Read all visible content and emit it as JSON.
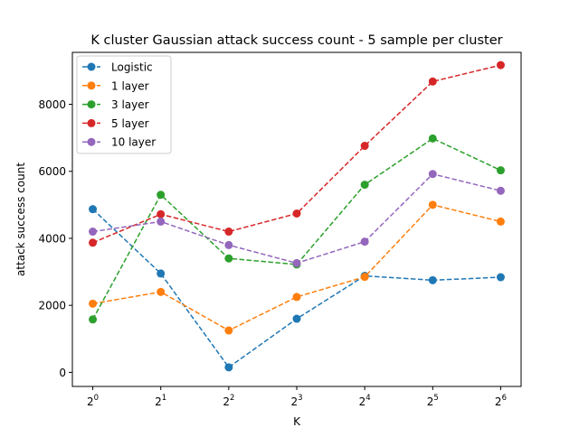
{
  "chart_data": {
    "type": "line",
    "title": "K cluster Gaussian attack success count - 5 sample per cluster",
    "xlabel": "K",
    "ylabel": "attack success count",
    "x": [
      0,
      1,
      2,
      3,
      4,
      5,
      6
    ],
    "x_tick_labels": [
      {
        "base": "2",
        "exp": "0"
      },
      {
        "base": "2",
        "exp": "1"
      },
      {
        "base": "2",
        "exp": "2"
      },
      {
        "base": "2",
        "exp": "3"
      },
      {
        "base": "2",
        "exp": "4"
      },
      {
        "base": "2",
        "exp": "5"
      },
      {
        "base": "2",
        "exp": "6"
      }
    ],
    "y_ticks": [
      0,
      2000,
      4000,
      6000,
      8000
    ],
    "y_tick_labels": [
      "0",
      "2000",
      "4000",
      "6000",
      "8000"
    ],
    "ylim": [
      -420,
      9550
    ],
    "xlim": [
      -0.3,
      6.3
    ],
    "grid": false,
    "legend_position": "top-left",
    "series": [
      {
        "name": "Logistic",
        "color": "#1f77b4",
        "values": [
          4870,
          2950,
          150,
          1600,
          2880,
          2750,
          2840
        ]
      },
      {
        "name": "1 layer",
        "color": "#ff7f0e",
        "values": [
          2050,
          2400,
          1250,
          2250,
          2850,
          5000,
          4500
        ]
      },
      {
        "name": "3 layer",
        "color": "#2ca02c",
        "values": [
          1580,
          5300,
          3400,
          3220,
          5600,
          6980,
          6030
        ]
      },
      {
        "name": "5 layer",
        "color": "#d62728",
        "values": [
          3870,
          4720,
          4200,
          4740,
          6760,
          8680,
          9170
        ]
      },
      {
        "name": "10 layer",
        "color": "#9467bd",
        "values": [
          4200,
          4500,
          3800,
          3260,
          3900,
          5920,
          5420
        ]
      }
    ]
  }
}
